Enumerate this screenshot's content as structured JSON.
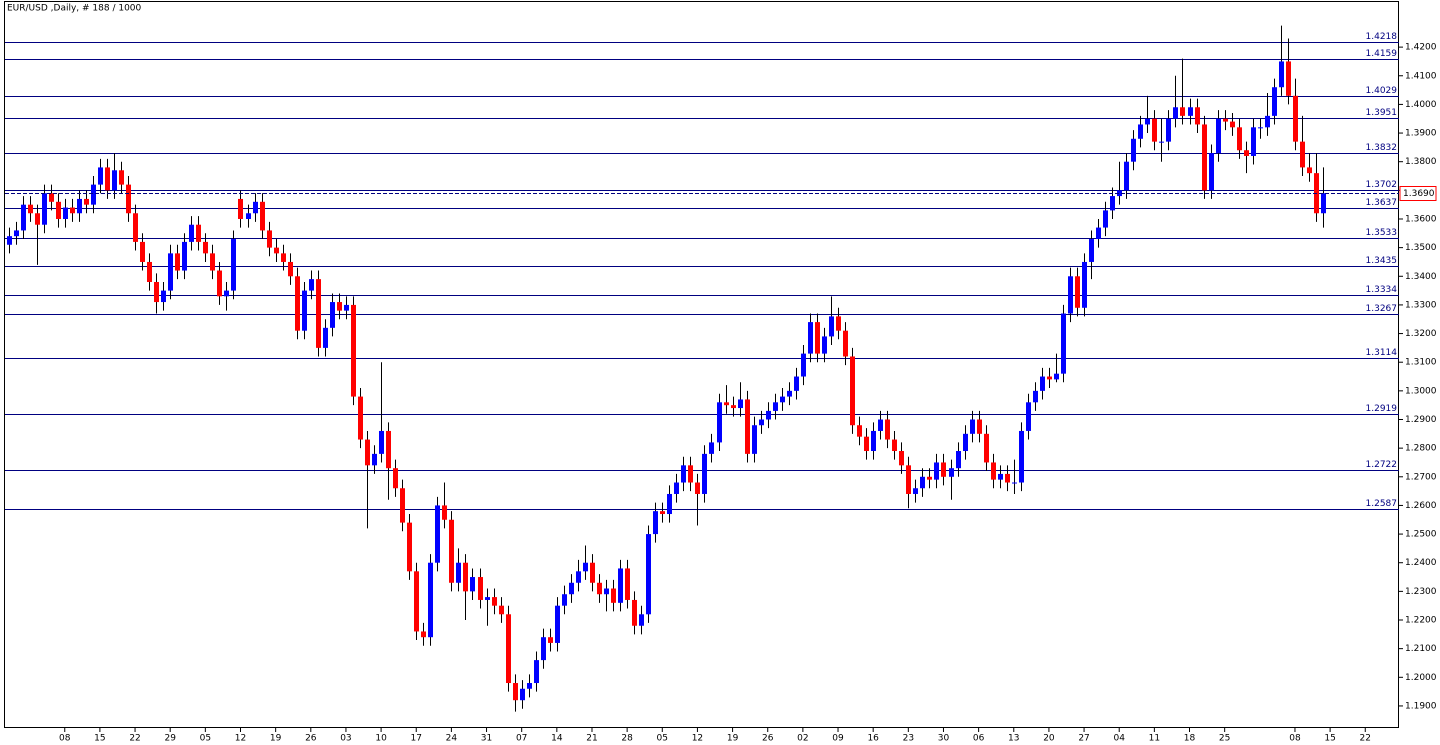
{
  "chart_data": {
    "type": "candlestick",
    "title": "EUR/USD ,Daily, # 188 / 1000",
    "open": [
      1.351,
      1.354,
      1.356,
      1.365,
      1.362,
      1.358,
      1.369,
      1.366,
      1.36,
      1.364,
      1.362,
      1.367,
      1.365,
      1.372,
      1.378,
      1.37,
      1.377,
      1.372,
      1.362,
      1.352,
      1.345,
      1.338,
      1.331,
      1.335,
      1.348,
      1.342,
      1.352,
      1.358,
      1.352,
      1.348,
      1.342,
      1.333,
      1.335,
      1.367,
      1.36,
      1.362,
      1.366,
      1.356,
      1.35,
      1.348,
      1.345,
      1.34,
      1.321,
      1.335,
      1.339,
      1.315,
      1.322,
      1.331,
      1.328,
      1.33,
      1.298,
      1.283,
      1.274,
      1.278,
      1.286,
      1.273,
      1.266,
      1.254,
      1.237,
      1.216,
      1.214,
      1.24,
      1.26,
      1.255,
      1.233,
      1.24,
      1.23,
      1.235,
      1.227,
      1.228,
      1.225,
      1.222,
      1.198,
      1.192,
      1.196,
      1.198,
      1.206,
      1.214,
      1.212,
      1.225,
      1.229,
      1.233,
      1.237,
      1.24,
      1.233,
      1.229,
      1.231,
      1.226,
      1.238,
      1.227,
      1.218,
      1.222,
      1.25,
      1.258,
      1.257,
      1.264,
      1.268,
      1.274,
      1.268,
      1.264,
      1.278,
      1.282,
      1.296,
      1.295,
      1.294,
      1.297,
      1.278,
      1.288,
      1.29,
      1.293,
      1.296,
      1.298,
      1.3,
      1.305,
      1.313,
      1.324,
      1.313,
      1.319,
      1.326,
      1.321,
      1.312,
      1.288,
      1.284,
      1.279,
      1.286,
      1.29,
      1.283,
      1.279,
      1.274,
      1.264,
      1.266,
      1.27,
      1.269,
      1.275,
      1.27,
      1.273,
      1.279,
      1.285,
      1.29,
      1.285,
      1.275,
      1.269,
      1.271,
      1.268,
      1.268,
      1.286,
      1.296,
      1.3,
      1.305,
      1.304,
      1.306,
      1.327,
      1.34,
      1.329,
      1.345,
      1.353,
      1.357,
      1.363,
      1.368,
      1.37,
      1.38,
      1.388,
      1.393,
      1.395,
      1.387,
      1.387,
      1.395,
      1.399,
      1.396,
      1.399,
      1.393,
      1.37,
      1.383,
      1.395,
      1.394,
      1.392,
      1.384,
      1.382,
      1.392,
      1.392,
      1.396,
      1.406,
      1.415,
      1.403,
      1.387,
      1.378,
      1.376,
      1.362
    ],
    "high": [
      1.357,
      1.359,
      1.368,
      1.368,
      1.365,
      1.372,
      1.372,
      1.369,
      1.367,
      1.367,
      1.37,
      1.37,
      1.375,
      1.381,
      1.381,
      1.383,
      1.38,
      1.375,
      1.365,
      1.355,
      1.348,
      1.341,
      1.338,
      1.351,
      1.351,
      1.355,
      1.361,
      1.361,
      1.355,
      1.351,
      1.345,
      1.338,
      1.356,
      1.37,
      1.365,
      1.369,
      1.369,
      1.359,
      1.353,
      1.351,
      1.348,
      1.343,
      1.338,
      1.342,
      1.342,
      1.325,
      1.334,
      1.334,
      1.333,
      1.333,
      1.301,
      1.286,
      1.281,
      1.31,
      1.289,
      1.276,
      1.269,
      1.257,
      1.24,
      1.219,
      1.243,
      1.263,
      1.268,
      1.258,
      1.245,
      1.243,
      1.238,
      1.238,
      1.231,
      1.231,
      1.228,
      1.225,
      1.201,
      1.199,
      1.201,
      1.209,
      1.217,
      1.217,
      1.228,
      1.232,
      1.236,
      1.241,
      1.246,
      1.243,
      1.236,
      1.234,
      1.234,
      1.241,
      1.241,
      1.23,
      1.225,
      1.253,
      1.261,
      1.261,
      1.267,
      1.271,
      1.277,
      1.277,
      1.271,
      1.281,
      1.285,
      1.299,
      1.302,
      1.298,
      1.303,
      1.3,
      1.291,
      1.293,
      1.296,
      1.299,
      1.301,
      1.303,
      1.308,
      1.316,
      1.327,
      1.327,
      1.322,
      1.333,
      1.329,
      1.324,
      1.315,
      1.291,
      1.287,
      1.289,
      1.293,
      1.293,
      1.286,
      1.282,
      1.277,
      1.269,
      1.273,
      1.273,
      1.278,
      1.278,
      1.276,
      1.282,
      1.288,
      1.293,
      1.293,
      1.288,
      1.278,
      1.274,
      1.274,
      1.276,
      1.289,
      1.299,
      1.303,
      1.308,
      1.308,
      1.313,
      1.33,
      1.343,
      1.343,
      1.348,
      1.356,
      1.36,
      1.366,
      1.371,
      1.38,
      1.383,
      1.391,
      1.396,
      1.403,
      1.398,
      1.395,
      1.398,
      1.41,
      1.416,
      1.402,
      1.402,
      1.396,
      1.386,
      1.398,
      1.398,
      1.397,
      1.395,
      1.387,
      1.395,
      1.395,
      1.404,
      1.409,
      1.4275,
      1.423,
      1.409,
      1.396,
      1.383,
      1.383,
      1.378
    ],
    "low": [
      1.348,
      1.351,
      1.353,
      1.359,
      1.344,
      1.355,
      1.363,
      1.357,
      1.357,
      1.359,
      1.359,
      1.362,
      1.362,
      1.369,
      1.367,
      1.367,
      1.369,
      1.359,
      1.349,
      1.342,
      1.335,
      1.327,
      1.328,
      1.332,
      1.339,
      1.339,
      1.349,
      1.349,
      1.345,
      1.339,
      1.33,
      1.328,
      1.332,
      1.357,
      1.357,
      1.359,
      1.353,
      1.347,
      1.345,
      1.342,
      1.337,
      1.318,
      1.318,
      1.332,
      1.312,
      1.312,
      1.319,
      1.325,
      1.325,
      1.295,
      1.28,
      1.252,
      1.271,
      1.275,
      1.262,
      1.263,
      1.251,
      1.234,
      1.213,
      1.211,
      1.211,
      1.237,
      1.252,
      1.23,
      1.23,
      1.22,
      1.227,
      1.224,
      1.218,
      1.222,
      1.219,
      1.195,
      1.188,
      1.189,
      1.193,
      1.195,
      1.203,
      1.209,
      1.209,
      1.222,
      1.226,
      1.23,
      1.234,
      1.23,
      1.226,
      1.223,
      1.223,
      1.223,
      1.224,
      1.215,
      1.215,
      1.219,
      1.247,
      1.254,
      1.254,
      1.261,
      1.265,
      1.265,
      1.253,
      1.261,
      1.275,
      1.279,
      1.292,
      1.291,
      1.291,
      1.275,
      1.275,
      1.285,
      1.287,
      1.29,
      1.293,
      1.295,
      1.297,
      1.302,
      1.31,
      1.31,
      1.31,
      1.316,
      1.318,
      1.309,
      1.285,
      1.281,
      1.276,
      1.276,
      1.283,
      1.28,
      1.276,
      1.271,
      1.259,
      1.261,
      1.263,
      1.266,
      1.266,
      1.267,
      1.262,
      1.27,
      1.276,
      1.282,
      1.282,
      1.272,
      1.266,
      1.266,
      1.265,
      1.264,
      1.265,
      1.283,
      1.293,
      1.297,
      1.301,
      1.303,
      1.303,
      1.324,
      1.326,
      1.326,
      1.339,
      1.35,
      1.354,
      1.36,
      1.365,
      1.367,
      1.377,
      1.385,
      1.39,
      1.384,
      1.38,
      1.384,
      1.392,
      1.393,
      1.393,
      1.39,
      1.367,
      1.367,
      1.38,
      1.391,
      1.389,
      1.381,
      1.376,
      1.379,
      1.388,
      1.389,
      1.393,
      1.403,
      1.4,
      1.384,
      1.375,
      1.373,
      1.359,
      1.357
    ],
    "close": [
      1.354,
      1.356,
      1.365,
      1.362,
      1.358,
      1.369,
      1.366,
      1.36,
      1.364,
      1.362,
      1.367,
      1.365,
      1.372,
      1.378,
      1.37,
      1.377,
      1.372,
      1.362,
      1.352,
      1.345,
      1.338,
      1.331,
      1.335,
      1.348,
      1.342,
      1.352,
      1.358,
      1.352,
      1.348,
      1.342,
      1.333,
      1.335,
      1.353,
      1.36,
      1.362,
      1.366,
      1.356,
      1.35,
      1.348,
      1.345,
      1.34,
      1.321,
      1.335,
      1.339,
      1.315,
      1.322,
      1.331,
      1.328,
      1.33,
      1.298,
      1.283,
      1.274,
      1.278,
      1.286,
      1.273,
      1.266,
      1.254,
      1.237,
      1.216,
      1.214,
      1.24,
      1.26,
      1.255,
      1.233,
      1.24,
      1.23,
      1.235,
      1.227,
      1.228,
      1.225,
      1.222,
      1.198,
      1.192,
      1.196,
      1.198,
      1.206,
      1.214,
      1.212,
      1.225,
      1.229,
      1.233,
      1.237,
      1.24,
      1.233,
      1.229,
      1.231,
      1.226,
      1.238,
      1.227,
      1.218,
      1.222,
      1.25,
      1.258,
      1.257,
      1.264,
      1.268,
      1.274,
      1.268,
      1.264,
      1.278,
      1.282,
      1.296,
      1.295,
      1.294,
      1.297,
      1.278,
      1.288,
      1.29,
      1.293,
      1.296,
      1.298,
      1.3,
      1.305,
      1.313,
      1.324,
      1.313,
      1.319,
      1.326,
      1.321,
      1.312,
      1.288,
      1.284,
      1.279,
      1.286,
      1.29,
      1.283,
      1.279,
      1.274,
      1.264,
      1.266,
      1.27,
      1.269,
      1.275,
      1.27,
      1.273,
      1.279,
      1.285,
      1.29,
      1.285,
      1.275,
      1.269,
      1.271,
      1.268,
      1.268,
      1.286,
      1.296,
      1.3,
      1.305,
      1.304,
      1.306,
      1.327,
      1.34,
      1.329,
      1.345,
      1.353,
      1.357,
      1.363,
      1.368,
      1.37,
      1.38,
      1.388,
      1.393,
      1.395,
      1.387,
      1.387,
      1.395,
      1.399,
      1.396,
      1.399,
      1.393,
      1.37,
      1.383,
      1.395,
      1.394,
      1.392,
      1.384,
      1.382,
      1.392,
      1.392,
      1.396,
      1.406,
      1.415,
      1.403,
      1.387,
      1.378,
      1.376,
      1.362,
      1.369
    ],
    "up_color": "#0000ff",
    "down_color": "#ff0000",
    "wick_color": "#000000",
    "levels": [
      1.4218,
      1.4159,
      1.4029,
      1.3951,
      1.3832,
      1.3702,
      1.3637,
      1.3533,
      1.3435,
      1.3334,
      1.3267,
      1.3114,
      1.2919,
      1.2722,
      1.2587
    ],
    "level_color": "#000080",
    "current_price": {
      "value": 1.369,
      "label": "1.3690"
    },
    "xlim": [
      -0.5,
      197.8
    ],
    "ylim": [
      1.1823,
      1.4361
    ],
    "xticks": [
      {
        "value": 8,
        "label": "08"
      },
      {
        "value": 13,
        "label": "15"
      },
      {
        "value": 18,
        "label": "22"
      },
      {
        "value": 23,
        "label": "29"
      },
      {
        "value": 28,
        "label": "05"
      },
      {
        "value": 33,
        "label": "12"
      },
      {
        "value": 38,
        "label": "19"
      },
      {
        "value": 43,
        "label": "26"
      },
      {
        "value": 48,
        "label": "03"
      },
      {
        "value": 53,
        "label": "10"
      },
      {
        "value": 58,
        "label": "17"
      },
      {
        "value": 63,
        "label": "24"
      },
      {
        "value": 68,
        "label": "31"
      },
      {
        "value": 73,
        "label": "07"
      },
      {
        "value": 78,
        "label": "14"
      },
      {
        "value": 83,
        "label": "21"
      },
      {
        "value": 88,
        "label": "28"
      },
      {
        "value": 93,
        "label": "05"
      },
      {
        "value": 98,
        "label": "12"
      },
      {
        "value": 103,
        "label": "19"
      },
      {
        "value": 108,
        "label": "26"
      },
      {
        "value": 113,
        "label": "02"
      },
      {
        "value": 118,
        "label": "09"
      },
      {
        "value": 123,
        "label": "16"
      },
      {
        "value": 128,
        "label": "23"
      },
      {
        "value": 133,
        "label": "30"
      },
      {
        "value": 138,
        "label": "06"
      },
      {
        "value": 143,
        "label": "13"
      },
      {
        "value": 148,
        "label": "20"
      },
      {
        "value": 153,
        "label": "27"
      },
      {
        "value": 158,
        "label": "04"
      },
      {
        "value": 163,
        "label": "11"
      },
      {
        "value": 168,
        "label": "18"
      },
      {
        "value": 173,
        "label": "25"
      },
      {
        "value": 183,
        "label": "08"
      },
      {
        "value": 188,
        "label": "15"
      },
      {
        "value": 193,
        "label": "22"
      }
    ],
    "yticks": [
      {
        "value": 1.42,
        "label": "1.4200"
      },
      {
        "value": 1.41,
        "label": "1.4100"
      },
      {
        "value": 1.4,
        "label": "1.4000"
      },
      {
        "value": 1.39,
        "label": "1.3900"
      },
      {
        "value": 1.38,
        "label": "1.3800"
      },
      {
        "value": 1.37,
        "label": "1.3700"
      },
      {
        "value": 1.36,
        "label": "1.3600"
      },
      {
        "value": 1.35,
        "label": "1.3500"
      },
      {
        "value": 1.34,
        "label": "1.3400"
      },
      {
        "value": 1.33,
        "label": "1.3300"
      },
      {
        "value": 1.32,
        "label": "1.3200"
      },
      {
        "value": 1.31,
        "label": "1.3100"
      },
      {
        "value": 1.3,
        "label": "1.3000"
      },
      {
        "value": 1.29,
        "label": "1.2900"
      },
      {
        "value": 1.28,
        "label": "1.2800"
      },
      {
        "value": 1.27,
        "label": "1.2700"
      },
      {
        "value": 1.26,
        "label": "1.2600"
      },
      {
        "value": 1.25,
        "label": "1.2500"
      },
      {
        "value": 1.24,
        "label": "1.2400"
      },
      {
        "value": 1.23,
        "label": "1.2300"
      },
      {
        "value": 1.22,
        "label": "1.2200"
      },
      {
        "value": 1.21,
        "label": "1.2100"
      },
      {
        "value": 1.2,
        "label": "1.2000"
      },
      {
        "value": 1.19,
        "label": "1.1900"
      }
    ]
  }
}
